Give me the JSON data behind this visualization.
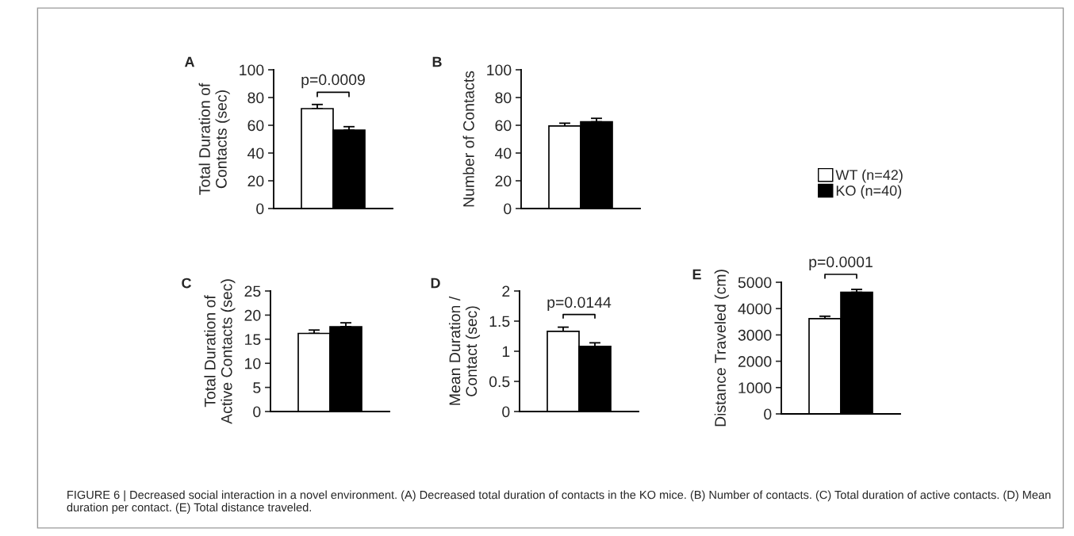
{
  "chart_data": [
    {
      "type": "bar",
      "title": "A",
      "ylabel": "Total Duration of\nContacts (sec)",
      "categories": [
        null
      ],
      "ylim": [
        0,
        100
      ],
      "yticks": [
        0,
        20,
        40,
        60,
        80,
        100
      ],
      "tick_labels": "y",
      "grid": false,
      "annotations": [
        "p=0.0009",
        "FIGURE 6 | Decreased social interaction in a novel environment. (A) Decreased total duration of contacts in the KO mice. (B) Number of contacts. (C) Total duration of active contacts. (D) Mean duration per contact. (E) Total distance traveled."
      ],
      "series": [
        {
          "color": "#ffffff",
          "values": [
            72
          ],
          "errors": [
            3
          ]
        },
        {
          "color": "#000000",
          "values": [
            56.5
          ],
          "errors": [
            2.5
          ]
        }
      ]
    },
    {
      "type": "bar",
      "title": "B",
      "ylabel": "Number of Contacts",
      "categories": [
        null
      ],
      "ylim": [
        0,
        100
      ],
      "yticks": [
        0,
        20,
        40,
        60,
        80,
        100
      ],
      "tick_labels": "y",
      "grid": false,
      "legend": "right",
      "series": [
        {
          "name": "WT (n=42)",
          "color": "#ffffff",
          "values": [
            59.5
          ],
          "errors": [
            2
          ]
        },
        {
          "name": "KO (n=40)",
          "color": "#000000",
          "values": [
            62.5
          ],
          "errors": [
            2.5
          ]
        }
      ]
    },
    {
      "type": "bar",
      "title": "C",
      "ylabel": "Total Duration of\nActive Contacts (sec)",
      "categories": [
        null
      ],
      "ylim": [
        0,
        25
      ],
      "yticks": [
        0,
        5,
        10,
        15,
        20,
        25
      ],
      "tick_labels": "y",
      "grid": false,
      "series": [
        {
          "color": "#ffffff",
          "values": [
            16.2
          ],
          "errors": [
            0.7
          ]
        },
        {
          "color": "#000000",
          "values": [
            17.6
          ],
          "errors": [
            0.8
          ]
        }
      ]
    },
    {
      "type": "bar",
      "title": "D",
      "ylabel": "Mean Duration /\nContact (sec)",
      "categories": [
        null
      ],
      "ylim": [
        0,
        2
      ],
      "yticks": [
        0,
        0.5,
        1,
        1.5,
        2
      ],
      "tick_labels": "y",
      "grid": false,
      "annotations": [
        "p=0.0144"
      ],
      "series": [
        {
          "color": "#ffffff",
          "values": [
            1.33
          ],
          "errors": [
            0.07
          ]
        },
        {
          "color": "#000000",
          "values": [
            1.08
          ],
          "errors": [
            0.06
          ]
        }
      ]
    },
    {
      "type": "bar",
      "title": "E",
      "ylabel": "Distance Traveled (cm)",
      "categories": [
        null
      ],
      "ylim": [
        0,
        5000
      ],
      "yticks": [
        0,
        1000,
        2000,
        3000,
        4000,
        5000
      ],
      "tick_labels": "y",
      "grid": false,
      "annotations": [
        "p=0.0001"
      ],
      "series": [
        {
          "color": "#ffffff",
          "values": [
            3620
          ],
          "errors": [
            90
          ]
        },
        {
          "color": "#000000",
          "values": [
            4620
          ],
          "errors": [
            110
          ]
        }
      ]
    }
  ]
}
